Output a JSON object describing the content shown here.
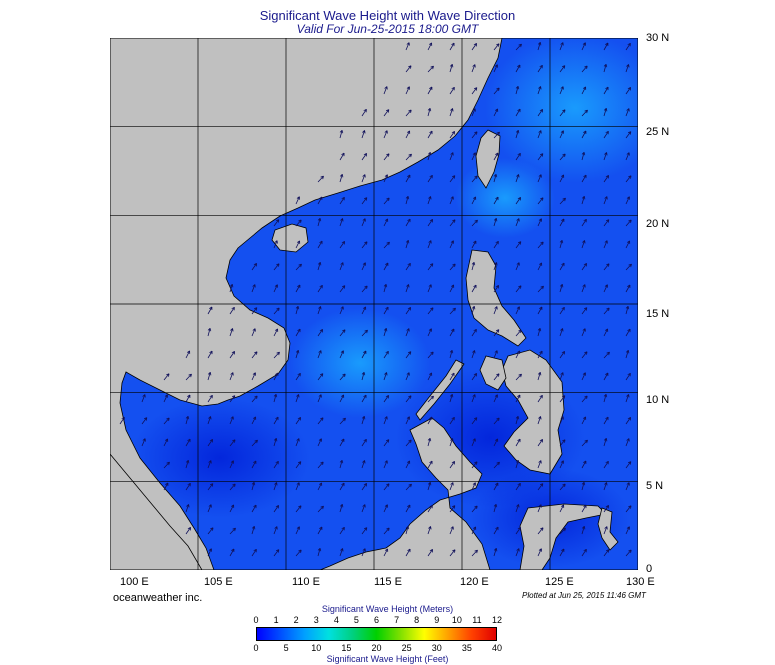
{
  "header": {
    "title": "Significant Wave Height with Wave Direction",
    "subtitle": "Valid For Jun-25-2015 18:00 GMT"
  },
  "map": {
    "lon_labels": [
      "100 E",
      "105 E",
      "110 E",
      "115 E",
      "120 E",
      "125 E",
      "130 E"
    ],
    "lat_labels": [
      "30 N",
      "25 N",
      "20 N",
      "15 N",
      "10 N",
      "5 N",
      "0"
    ],
    "land_color": "#c0c0c0",
    "sea_color": "#1450f0",
    "gridlines": true,
    "wave_direction": "mostly north-east"
  },
  "footer": {
    "brand": "oceanweather inc.",
    "plotted": "Plotted at Jun 25, 2015 11:46 GMT"
  },
  "colorbar": {
    "title_meters": "Significant Wave Height (Meters)",
    "title_feet": "Significant Wave Height (Feet)",
    "meters_ticks": [
      "0",
      "1",
      "2",
      "3",
      "4",
      "5",
      "6",
      "7",
      "8",
      "9",
      "10",
      "11",
      "12"
    ],
    "feet_ticks": [
      "0",
      "5",
      "10",
      "15",
      "20",
      "25",
      "30",
      "35",
      "40"
    ],
    "colors": [
      "#0000ff",
      "#0050ff",
      "#00a0ff",
      "#00e0e0",
      "#00d080",
      "#00d000",
      "#80e000",
      "#ffff00",
      "#ffa000",
      "#ff4000",
      "#e00000"
    ]
  }
}
